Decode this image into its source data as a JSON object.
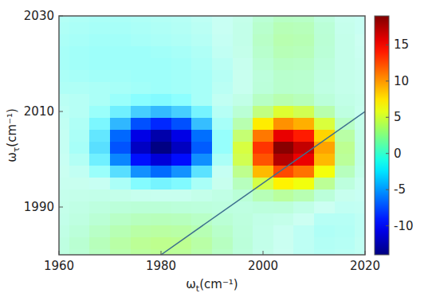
{
  "chart_data": {
    "type": "heatmap",
    "xlabel": {
      "symbol": "ω",
      "subscript": "t",
      "unit": "(cm⁻¹)"
    },
    "ylabel": {
      "symbol": "ω",
      "subscript": "τ",
      "unit": "(cm⁻¹)"
    },
    "x": [
      1960,
      1964,
      1968,
      1972,
      1976,
      1980,
      1984,
      1988,
      1992,
      1996,
      2000,
      2004,
      2008,
      2012,
      2016,
      2020
    ],
    "y": [
      1980,
      1982.5,
      1985,
      1987.5,
      1990,
      1992.5,
      1995,
      1997.5,
      2000,
      2002.5,
      2005,
      2007.5,
      2010,
      2012.5,
      2015,
      2017.5,
      2020,
      2022.5,
      2025,
      2027.5,
      2030
    ],
    "z": [
      [
        1.0,
        1.5,
        2.2,
        2.8,
        3.2,
        3.4,
        3.3,
        2.8,
        2.0,
        1.2,
        0.5,
        0.0,
        -0.4,
        -0.6,
        -0.5,
        -0.3
      ],
      [
        1.0,
        1.6,
        2.4,
        3.0,
        3.4,
        3.6,
        3.5,
        3.0,
        2.2,
        1.3,
        0.6,
        0.1,
        -0.4,
        -0.7,
        -0.6,
        -0.3
      ],
      [
        0.8,
        1.3,
        2.0,
        2.6,
        3.0,
        3.1,
        3.0,
        2.6,
        1.9,
        1.2,
        0.6,
        0.1,
        -0.4,
        -0.8,
        -0.7,
        -0.4
      ],
      [
        0.6,
        1.0,
        1.5,
        2.0,
        2.3,
        2.4,
        2.3,
        2.0,
        1.5,
        1.1,
        0.7,
        0.5,
        0.0,
        -0.6,
        -0.6,
        -0.4
      ],
      [
        0.5,
        0.8,
        1.05,
        1.3,
        1.4,
        1.4,
        1.3,
        1.2,
        1.05,
        1.0,
        1.15,
        1.25,
        0.7,
        0.0,
        -0.3,
        -0.25
      ],
      [
        0.4,
        0.5,
        0.6,
        0.5,
        0.3,
        0.2,
        0.2,
        0.5,
        0.8,
        1.4,
        2.5,
        3.2,
        2.65,
        1.3,
        0.3,
        -0.1
      ],
      [
        0.25,
        0.2,
        -0.15,
        -0.9,
        -1.85,
        -2.3,
        -1.95,
        -0.95,
        0.3,
        2.3,
        5.1,
        7.0,
        6.2,
        3.4,
        1.1,
        0.2
      ],
      [
        0.1,
        -0.3,
        -1.3,
        -3.25,
        -5.45,
        -6.4,
        -5.4,
        -3.1,
        -0.2,
        3.6,
        8.85,
        12.5,
        11.2,
        6.3,
        2.3,
        0.6
      ],
      [
        -0.1,
        -0.7,
        -2.5,
        -5.7,
        -9.4,
        -11.1,
        -9.5,
        -5.5,
        -0.9,
        4.9,
        12.2,
        17.3,
        15.5,
        8.9,
        3.3,
        0.8
      ],
      [
        -0.2,
        -1.0,
        -3.2,
        -7.2,
        -11.8,
        -13.9,
        -11.9,
        -6.9,
        -1.4,
        5.2,
        13.2,
        18.7,
        16.8,
        9.6,
        3.5,
        0.8
      ],
      [
        -0.2,
        -0.9,
        -2.9,
        -6.5,
        -10.7,
        -12.6,
        -10.7,
        -6.3,
        -1.4,
        4.2,
        11.0,
        15.6,
        14.0,
        8.0,
        3.0,
        0.7
      ],
      [
        -0.3,
        -0.8,
        -2.1,
        -4.5,
        -7.3,
        -8.6,
        -7.3,
        -4.3,
        -1.0,
        2.7,
        7.2,
        10.2,
        9.2,
        5.3,
        2.0,
        0.5
      ],
      [
        -0.4,
        -0.6,
        -1.3,
        -2.5,
        -3.8,
        -4.4,
        -3.8,
        -2.3,
        -0.6,
        1.5,
        3.9,
        5.5,
        4.9,
        2.8,
        1.0,
        0.3
      ],
      [
        -0.5,
        -0.6,
        -0.9,
        -1.3,
        -1.7,
        -1.9,
        -1.6,
        -1.0,
        -0.3,
        0.7,
        2.1,
        2.7,
        2.4,
        1.3,
        0.7,
        0.4
      ],
      [
        -0.8,
        -0.8,
        -0.9,
        -1.0,
        -1.1,
        -1.2,
        -1.1,
        -1.0,
        -0.5,
        0.2,
        1.3,
        1.8,
        1.7,
        0.9,
        0.5,
        0.3
      ],
      [
        -0.9,
        -1.0,
        -1.1,
        -1.1,
        -1.2,
        -1.2,
        -1.1,
        -1.0,
        -0.6,
        0.2,
        1.2,
        1.8,
        1.7,
        1.0,
        0.5,
        0.3
      ],
      [
        -1.0,
        -1.1,
        -1.2,
        -1.2,
        -1.2,
        -1.2,
        -1.1,
        -0.9,
        -0.5,
        0.3,
        1.5,
        2.1,
        2.0,
        1.2,
        0.5,
        0.2
      ],
      [
        -1.0,
        -1.1,
        -1.2,
        -1.2,
        -1.2,
        -1.1,
        -1.0,
        -0.8,
        -0.3,
        0.5,
        1.8,
        2.5,
        2.4,
        1.4,
        0.5,
        0.1
      ],
      [
        -0.9,
        -1.0,
        -1.1,
        -1.1,
        -1.0,
        -0.9,
        -0.8,
        -0.6,
        -0.2,
        0.6,
        2.0,
        2.7,
        2.6,
        1.5,
        0.5,
        0.0
      ],
      [
        -0.8,
        -0.9,
        -1.0,
        -1.0,
        -0.9,
        -0.8,
        -0.7,
        -0.5,
        -0.1,
        0.6,
        1.8,
        2.5,
        2.4,
        1.4,
        0.4,
        -0.1
      ],
      [
        -0.7,
        -0.8,
        -0.9,
        -0.9,
        -0.8,
        -0.7,
        -0.6,
        -0.4,
        -0.1,
        0.5,
        1.5,
        2.1,
        2.0,
        1.1,
        0.3,
        -0.1
      ]
    ],
    "xlim": [
      1960,
      2020
    ],
    "ylim": [
      1980,
      2030
    ],
    "xticks": [
      1960,
      1980,
      2000,
      2020
    ],
    "yticks": [
      1990,
      2010,
      2030
    ],
    "zlim": [
      -14,
      19
    ],
    "zticks": [
      -10,
      -5,
      0,
      5,
      10,
      15
    ],
    "diagonal": {
      "x": [
        1980,
        2020
      ],
      "y": [
        1980,
        2010
      ]
    }
  }
}
